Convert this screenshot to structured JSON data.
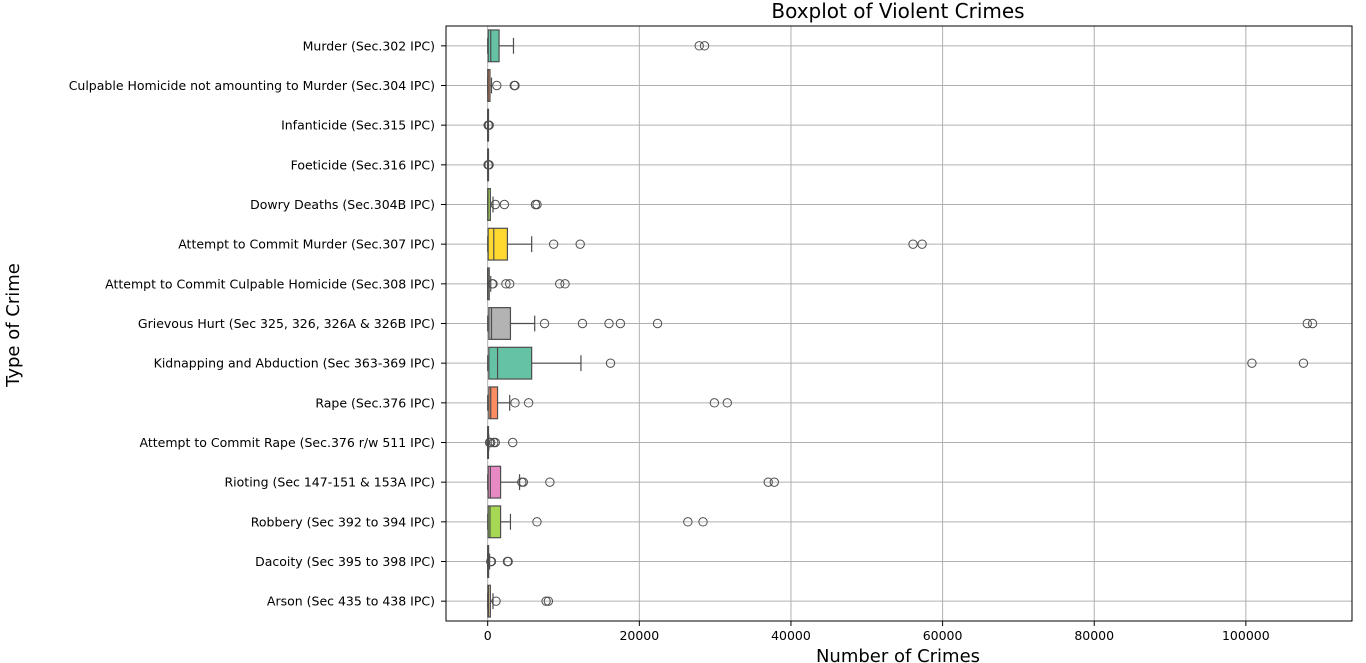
{
  "chart_data": {
    "type": "boxplot",
    "orientation": "horizontal",
    "title": "Boxplot of Violent Crimes",
    "xlabel": "Number of Crimes",
    "ylabel": "Type of Crime",
    "xlim": [
      -5500,
      114000
    ],
    "xticks": [
      0,
      20000,
      40000,
      60000,
      80000,
      100000
    ],
    "xtick_labels": [
      "0",
      "20000",
      "40000",
      "60000",
      "80000",
      "100000"
    ],
    "grid": true,
    "categories": [
      {
        "label": "Murder (Sec.302 IPC)",
        "color": "#66c2a5",
        "min": 0,
        "q1": 70,
        "median": 400,
        "q3": 1500,
        "max": 3400,
        "outliers": [
          27900,
          28600
        ]
      },
      {
        "label": "Culpable Homicide not amounting to Murder (Sec.304 IPC)",
        "color": "#fc8d62",
        "min": 0,
        "q1": 5,
        "median": 60,
        "q3": 300,
        "max": 500,
        "outliers": [
          1200,
          3500,
          3600
        ]
      },
      {
        "label": "Infanticide (Sec.315 IPC)",
        "color": "#8da0cb",
        "min": 0,
        "q1": 0,
        "median": 2,
        "q3": 10,
        "max": 30,
        "outliers": [
          60,
          110,
          160,
          200
        ]
      },
      {
        "label": "Foeticide (Sec.316 IPC)",
        "color": "#e78ac3",
        "min": 0,
        "q1": 0,
        "median": 2,
        "q3": 10,
        "max": 25,
        "outliers": [
          50,
          100,
          150,
          180
        ]
      },
      {
        "label": "Dowry Deaths (Sec.304B IPC)",
        "color": "#a6d854",
        "min": 0,
        "q1": 5,
        "median": 40,
        "q3": 350,
        "max": 700,
        "outliers": [
          1000,
          2200,
          6300,
          6500
        ]
      },
      {
        "label": "Attempt to Commit Murder (Sec.307 IPC)",
        "color": "#ffd92f",
        "min": 0,
        "q1": 60,
        "median": 800,
        "q3": 2600,
        "max": 5800,
        "outliers": [
          8700,
          12200,
          56100,
          57300
        ]
      },
      {
        "label": "Attempt to Commit Culpable Homicide (Sec.308 IPC)",
        "color": "#e5c494",
        "min": 0,
        "q1": 0,
        "median": 15,
        "q3": 200,
        "max": 400,
        "outliers": [
          600,
          700,
          2400,
          2900,
          9500,
          10200
        ]
      },
      {
        "label": "Grievous Hurt (Sec 325, 326, 326A & 326B IPC)",
        "color": "#b3b3b3",
        "min": 0,
        "q1": 150,
        "median": 500,
        "q3": 3000,
        "max": 6200,
        "outliers": [
          7500,
          12500,
          16000,
          17500,
          22400,
          108100,
          108800
        ]
      },
      {
        "label": "Kidnapping and Abduction (Sec 363-369 IPC)",
        "color": "#66c2a5",
        "min": 0,
        "q1": 150,
        "median": 1300,
        "q3": 5800,
        "max": 12300,
        "outliers": [
          16200,
          100800,
          107600
        ]
      },
      {
        "label": "Rape (Sec.376 IPC)",
        "color": "#fc8d62",
        "min": 0,
        "q1": 150,
        "median": 400,
        "q3": 1300,
        "max": 2900,
        "outliers": [
          3600,
          5400,
          29900,
          31600
        ]
      },
      {
        "label": "Attempt to Commit Rape (Sec.376 r/w 511 IPC)",
        "color": "#8da0cb",
        "min": 0,
        "q1": 0,
        "median": 5,
        "q3": 60,
        "max": 150,
        "outliers": [
          250,
          400,
          800,
          1000,
          3300
        ]
      },
      {
        "label": "Rioting (Sec 147-151 & 153A IPC)",
        "color": "#e78ac3",
        "min": 0,
        "q1": 60,
        "median": 350,
        "q3": 1700,
        "max": 4200,
        "outliers": [
          4500,
          4700,
          8200,
          37000,
          37800
        ]
      },
      {
        "label": "Robbery (Sec 392 to 394 IPC)",
        "color": "#a6d854",
        "min": 0,
        "q1": 60,
        "median": 300,
        "q3": 1700,
        "max": 3000,
        "outliers": [
          6500,
          26400,
          28400
        ]
      },
      {
        "label": "Dacoity (Sec 395 to 398 IPC)",
        "color": "#ffd92f",
        "min": 0,
        "q1": 0,
        "median": 20,
        "q3": 120,
        "max": 250,
        "outliers": [
          400,
          500,
          2600,
          2700
        ]
      },
      {
        "label": "Arson (Sec 435 to 438 IPC)",
        "color": "#e5c494",
        "min": 0,
        "q1": 20,
        "median": 100,
        "q3": 350,
        "max": 700,
        "outliers": [
          1100,
          7700,
          8000
        ]
      }
    ]
  }
}
